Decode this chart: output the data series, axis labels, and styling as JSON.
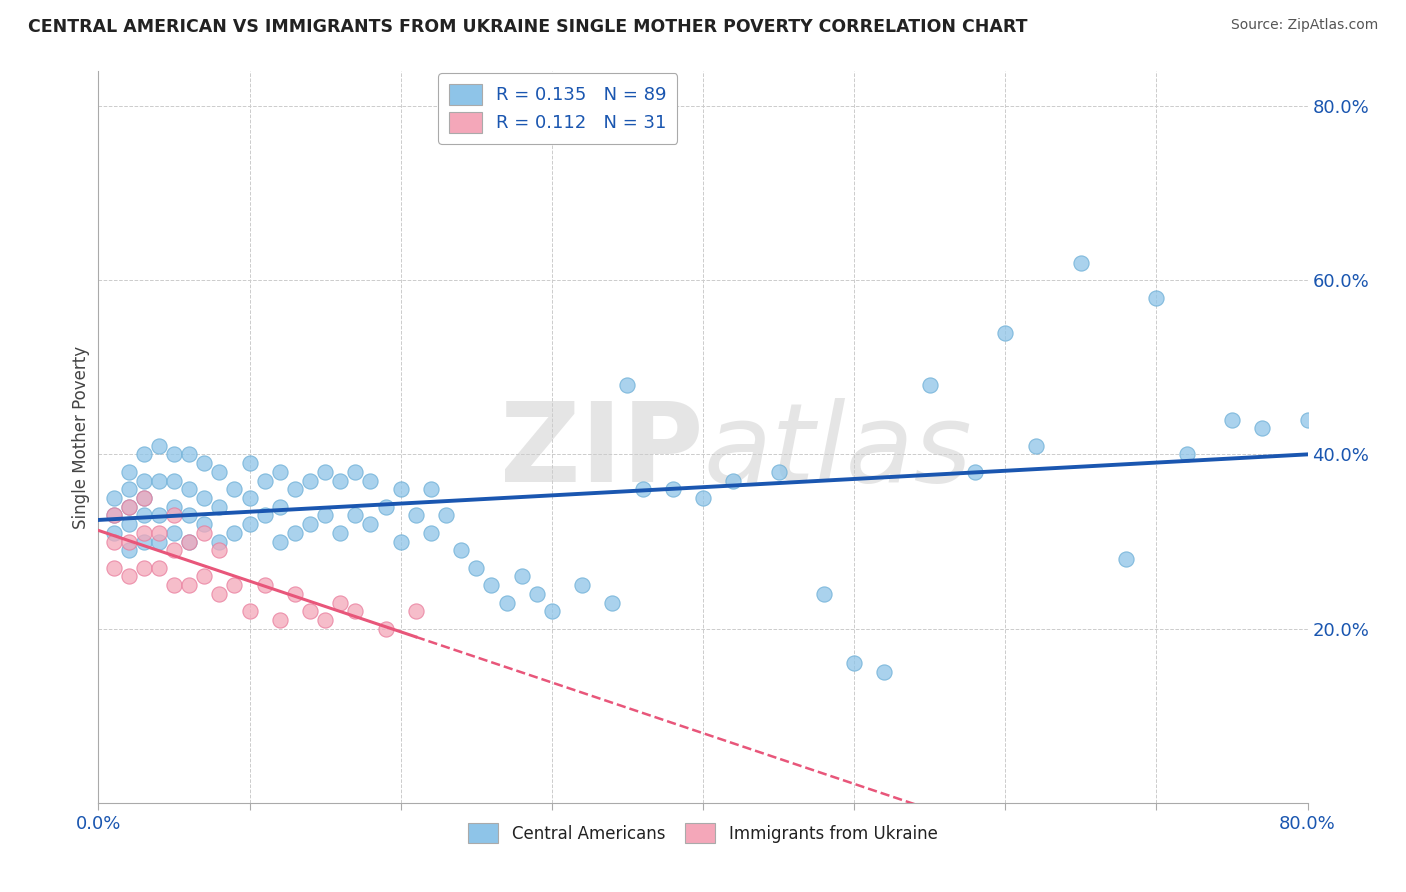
{
  "title": "CENTRAL AMERICAN VS IMMIGRANTS FROM UKRAINE SINGLE MOTHER POVERTY CORRELATION CHART",
  "source": "Source: ZipAtlas.com",
  "ylabel": "Single Mother Poverty",
  "xmin": 0.0,
  "xmax": 0.8,
  "ymin": 0.0,
  "ymax": 0.84,
  "blue_R": 0.135,
  "blue_N": 89,
  "pink_R": 0.112,
  "pink_N": 31,
  "blue_color": "#8ec4e8",
  "blue_edge_color": "#6aadd5",
  "pink_color": "#f4a7b9",
  "pink_edge_color": "#e8799a",
  "blue_line_color": "#1a56b0",
  "pink_line_color": "#e8567a",
  "watermark": "ZIPAtlas",
  "legend_R_color": "#1a56b0",
  "blue_scatter_x": [
    0.01,
    0.01,
    0.01,
    0.02,
    0.02,
    0.02,
    0.02,
    0.02,
    0.03,
    0.03,
    0.03,
    0.03,
    0.03,
    0.04,
    0.04,
    0.04,
    0.04,
    0.05,
    0.05,
    0.05,
    0.05,
    0.06,
    0.06,
    0.06,
    0.06,
    0.07,
    0.07,
    0.07,
    0.08,
    0.08,
    0.08,
    0.09,
    0.09,
    0.1,
    0.1,
    0.1,
    0.11,
    0.11,
    0.12,
    0.12,
    0.12,
    0.13,
    0.13,
    0.14,
    0.14,
    0.15,
    0.15,
    0.16,
    0.16,
    0.17,
    0.17,
    0.18,
    0.18,
    0.19,
    0.2,
    0.2,
    0.21,
    0.22,
    0.22,
    0.23,
    0.24,
    0.25,
    0.26,
    0.27,
    0.28,
    0.29,
    0.3,
    0.32,
    0.34,
    0.35,
    0.36,
    0.38,
    0.4,
    0.42,
    0.45,
    0.48,
    0.5,
    0.52,
    0.55,
    0.58,
    0.6,
    0.62,
    0.65,
    0.68,
    0.7,
    0.72,
    0.75,
    0.77,
    0.8
  ],
  "blue_scatter_y": [
    0.31,
    0.33,
    0.35,
    0.29,
    0.32,
    0.34,
    0.36,
    0.38,
    0.3,
    0.33,
    0.35,
    0.37,
    0.4,
    0.3,
    0.33,
    0.37,
    0.41,
    0.31,
    0.34,
    0.37,
    0.4,
    0.3,
    0.33,
    0.36,
    0.4,
    0.32,
    0.35,
    0.39,
    0.3,
    0.34,
    0.38,
    0.31,
    0.36,
    0.32,
    0.35,
    0.39,
    0.33,
    0.37,
    0.3,
    0.34,
    0.38,
    0.31,
    0.36,
    0.32,
    0.37,
    0.33,
    0.38,
    0.31,
    0.37,
    0.33,
    0.38,
    0.32,
    0.37,
    0.34,
    0.3,
    0.36,
    0.33,
    0.31,
    0.36,
    0.33,
    0.29,
    0.27,
    0.25,
    0.23,
    0.26,
    0.24,
    0.22,
    0.25,
    0.23,
    0.48,
    0.36,
    0.36,
    0.35,
    0.37,
    0.38,
    0.24,
    0.16,
    0.15,
    0.48,
    0.38,
    0.54,
    0.41,
    0.62,
    0.28,
    0.58,
    0.4,
    0.44,
    0.43,
    0.44
  ],
  "pink_scatter_x": [
    0.01,
    0.01,
    0.01,
    0.02,
    0.02,
    0.02,
    0.03,
    0.03,
    0.03,
    0.04,
    0.04,
    0.05,
    0.05,
    0.05,
    0.06,
    0.06,
    0.07,
    0.07,
    0.08,
    0.08,
    0.09,
    0.1,
    0.11,
    0.12,
    0.13,
    0.14,
    0.15,
    0.16,
    0.17,
    0.19,
    0.21
  ],
  "pink_scatter_y": [
    0.27,
    0.3,
    0.33,
    0.26,
    0.3,
    0.34,
    0.27,
    0.31,
    0.35,
    0.27,
    0.31,
    0.25,
    0.29,
    0.33,
    0.25,
    0.3,
    0.26,
    0.31,
    0.24,
    0.29,
    0.25,
    0.22,
    0.25,
    0.21,
    0.24,
    0.22,
    0.21,
    0.23,
    0.22,
    0.2,
    0.22
  ]
}
